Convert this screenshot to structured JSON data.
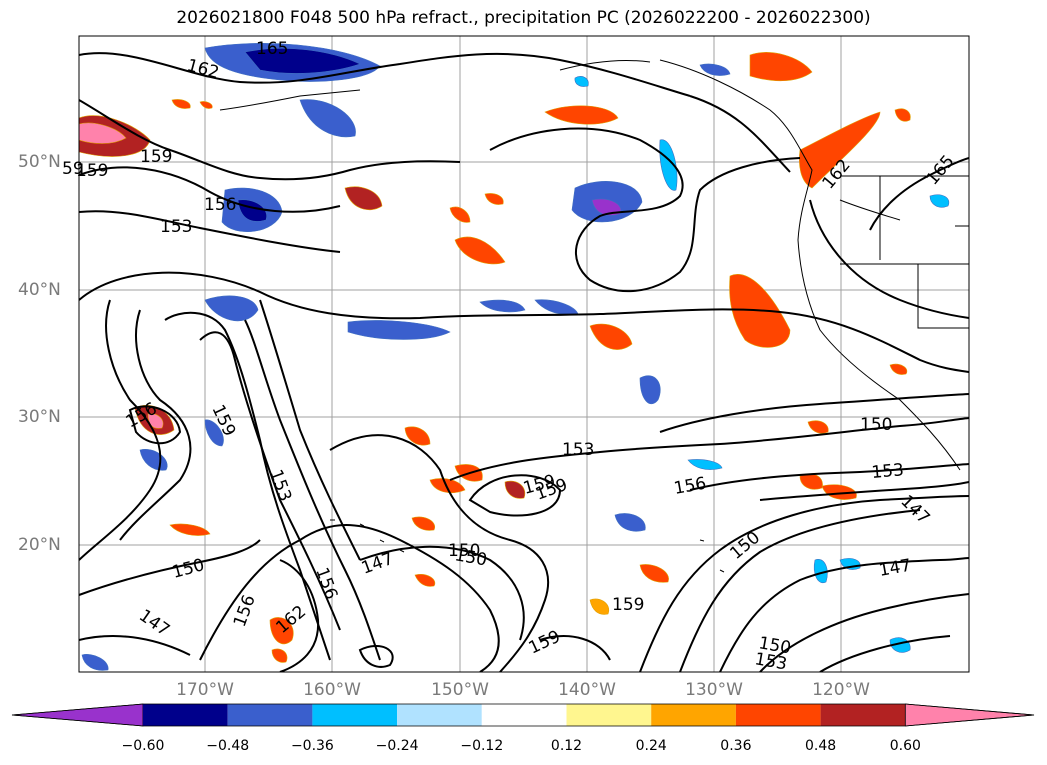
{
  "title": "2026021800 F048 500 hPa refract., precipitation PC (2026022200 - 2026022300)",
  "lat_labels": [
    "50°N",
    "40°N",
    "30°N",
    "20°N"
  ],
  "lon_labels": [
    "170°W",
    "160°W",
    "150°W",
    "140°W",
    "130°W",
    "120°W"
  ],
  "contour_labels": [
    "165",
    "162",
    "159",
    "159",
    "156",
    "153",
    "153",
    "156",
    "159",
    "156",
    "159",
    "150",
    "150",
    "147",
    "150",
    "147",
    "156",
    "162",
    "156",
    "159",
    "150",
    "153",
    "147",
    "159",
    "150",
    "153",
    "162",
    "165",
    "159",
    "153",
    "150",
    "147",
    "59"
  ],
  "colorbar": {
    "ticks": [
      "−0.60",
      "−0.48",
      "−0.36",
      "−0.24",
      "−0.12",
      "0.12",
      "0.24",
      "0.36",
      "0.48",
      "0.60"
    ],
    "colors": [
      "#9932cc",
      "#00008b",
      "#3a5fcd",
      "#00bfff",
      "#b0e2ff",
      "#ffffff",
      "#fff68f",
      "#ffa500",
      "#ff4500",
      "#b22222",
      "#ff82ab"
    ]
  }
}
